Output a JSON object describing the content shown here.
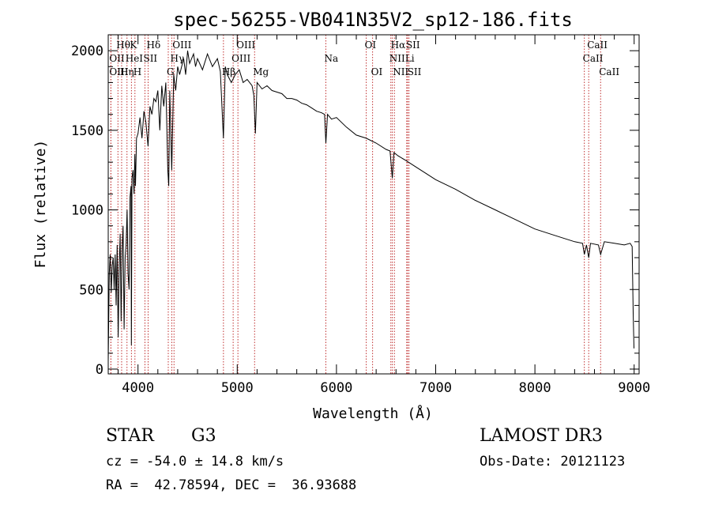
{
  "chart_data": {
    "type": "line",
    "title": "spec-56255-VB041N35V2_sp12-186.fits",
    "xlabel": "Wavelength (Å)",
    "ylabel": "Flux (relative)",
    "xlim": [
      3700,
      9050
    ],
    "ylim": [
      -30,
      2100
    ],
    "xticks": [
      4000,
      5000,
      6000,
      7000,
      8000,
      9000
    ],
    "xtick_labels": [
      "4000",
      "5000",
      "6000",
      "7000",
      "8000",
      "9000"
    ],
    "yticks": [
      0,
      500,
      1000,
      1500,
      2000
    ],
    "ytick_labels": [
      "0",
      "500",
      "1000",
      "1500",
      "2000"
    ],
    "series": [
      {
        "name": "spectrum",
        "x": [
          3700,
          3710,
          3720,
          3730,
          3740,
          3750,
          3760,
          3770,
          3780,
          3790,
          3800,
          3810,
          3820,
          3830,
          3840,
          3850,
          3860,
          3870,
          3880,
          3890,
          3900,
          3910,
          3920,
          3930,
          3933,
          3940,
          3950,
          3960,
          3968,
          3975,
          3985,
          4000,
          4020,
          4040,
          4060,
          4080,
          4101,
          4120,
          4140,
          4160,
          4180,
          4200,
          4220,
          4240,
          4260,
          4280,
          4300,
          4310,
          4320,
          4340,
          4360,
          4380,
          4400,
          4420,
          4440,
          4460,
          4480,
          4500,
          4520,
          4540,
          4560,
          4580,
          4600,
          4650,
          4700,
          4750,
          4800,
          4830,
          4861,
          4880,
          4900,
          4940,
          4980,
          5020,
          5060,
          5100,
          5150,
          5167,
          5183,
          5200,
          5250,
          5300,
          5350,
          5400,
          5450,
          5500,
          5550,
          5600,
          5650,
          5700,
          5750,
          5800,
          5850,
          5880,
          5893,
          5910,
          5950,
          6000,
          6100,
          6200,
          6300,
          6400,
          6500,
          6540,
          6563,
          6580,
          6620,
          6700,
          6800,
          6900,
          7000,
          7200,
          7400,
          7600,
          7800,
          8000,
          8200,
          8400,
          8480,
          8498,
          8520,
          8542,
          8560,
          8640,
          8662,
          8700,
          8800,
          8900,
          8960,
          8980,
          8990,
          8998
        ],
        "y": [
          50,
          600,
          720,
          480,
          650,
          700,
          500,
          720,
          400,
          780,
          200,
          620,
          850,
          300,
          750,
          900,
          250,
          700,
          780,
          1000,
          600,
          500,
          1080,
          1150,
          150,
          1200,
          1250,
          1100,
          1350,
          1150,
          1450,
          1480,
          1580,
          1450,
          1620,
          1550,
          1400,
          1650,
          1600,
          1700,
          1680,
          1750,
          1500,
          1780,
          1650,
          1800,
          1250,
          1150,
          1750,
          1250,
          1850,
          1750,
          1900,
          1850,
          1900,
          1950,
          1850,
          2000,
          1920,
          1950,
          1980,
          1900,
          1950,
          1880,
          1980,
          1900,
          1950,
          1870,
          1450,
          1900,
          1850,
          1800,
          1850,
          1880,
          1800,
          1820,
          1780,
          1720,
          1480,
          1800,
          1760,
          1780,
          1750,
          1740,
          1730,
          1700,
          1700,
          1690,
          1670,
          1660,
          1640,
          1620,
          1610,
          1600,
          1420,
          1600,
          1570,
          1580,
          1520,
          1470,
          1450,
          1420,
          1380,
          1370,
          1200,
          1360,
          1340,
          1310,
          1270,
          1230,
          1190,
          1130,
          1060,
          1000,
          940,
          880,
          840,
          800,
          790,
          720,
          780,
          700,
          790,
          780,
          720,
          800,
          790,
          780,
          790,
          770,
          350,
          130
        ]
      }
    ],
    "spectral_lines": [
      {
        "label": "Hθ",
        "x": 3798,
        "row": 0
      },
      {
        "label": "OII",
        "x": 3727,
        "row": 1
      },
      {
        "label": "OIII",
        "x": 3727,
        "row": 2
      },
      {
        "label": "K",
        "x": 3934,
        "row": 0
      },
      {
        "label": "HeI",
        "x": 3889,
        "row": 1
      },
      {
        "label": "Hη",
        "x": 3835,
        "row": 2
      },
      {
        "label": "Hδ",
        "x": 4102,
        "row": 0
      },
      {
        "label": "SII",
        "x": 4070,
        "row": 1
      },
      {
        "label": "H",
        "x": 3969,
        "row": 2
      },
      {
        "label": "OIII",
        "x": 4363,
        "row": 0
      },
      {
        "label": "Hγ",
        "x": 4341,
        "row": 1
      },
      {
        "label": "G",
        "x": 4305,
        "row": 2
      },
      {
        "label": "OIII",
        "x": 5007,
        "row": 0
      },
      {
        "label": "OIII",
        "x": 4959,
        "row": 1
      },
      {
        "label": "Hβ",
        "x": 4861,
        "row": 2
      },
      {
        "label": "Mg",
        "x": 5175,
        "row": 2
      },
      {
        "label": "Na",
        "x": 5893,
        "row": 1
      },
      {
        "label": "OI",
        "x": 6300,
        "row": 0
      },
      {
        "label": "OI",
        "x": 6364,
        "row": 2
      },
      {
        "label": "Hα",
        "x": 6563,
        "row": 0
      },
      {
        "label": "NII",
        "x": 6548,
        "row": 1
      },
      {
        "label": "NII",
        "x": 6584,
        "row": 2
      },
      {
        "label": "SII",
        "x": 6717,
        "row": 0
      },
      {
        "label": "Li",
        "x": 6708,
        "row": 1
      },
      {
        "label": "SII",
        "x": 6731,
        "row": 2
      },
      {
        "label": "CaII",
        "x": 8542,
        "row": 0
      },
      {
        "label": "CaII",
        "x": 8498,
        "row": 1
      },
      {
        "label": "CaII",
        "x": 8662,
        "row": 2
      }
    ]
  },
  "info": {
    "object_class": "STAR",
    "subclass": "G3",
    "survey": "LAMOST DR3",
    "redshift": "cz = -54.0 ± 14.8 km/s",
    "obs_date": "Obs-Date: 20121123",
    "coords": "RA =  42.78594, DEC =  36.93688"
  },
  "colors": {
    "spectrum": "#000000",
    "line_markers": "#c03030",
    "axes": "#000000"
  }
}
